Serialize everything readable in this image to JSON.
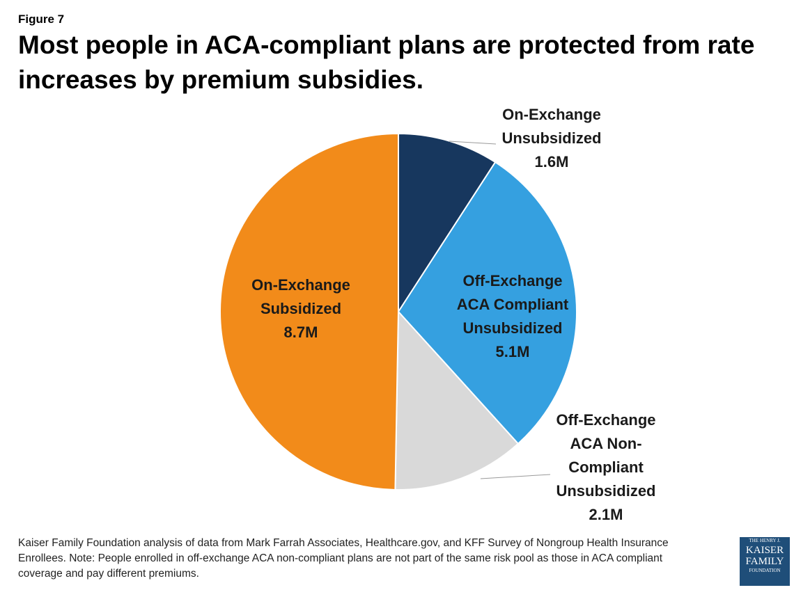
{
  "figure_label": "Figure 7",
  "chart_data": {
    "type": "pie",
    "title": "Most people in ACA-compliant plans are protected from rate increases by premium subsidies.",
    "categories": [
      "On-Exchange Unsubsidized",
      "Off-Exchange ACA Compliant Unsubsidized",
      "Off-Exchange ACA Non-Compliant Unsubsidized",
      "On-Exchange Subsidized"
    ],
    "values": [
      1.6,
      5.1,
      2.1,
      8.7
    ],
    "value_labels": [
      "1.6M",
      "5.1M",
      "2.1M",
      "8.7M"
    ],
    "colors": [
      "#17375e",
      "#35a0e0",
      "#d9d9d9",
      "#f28b1a"
    ]
  },
  "source": "Kaiser Family Foundation analysis of data from Mark Farrah Associates, Healthcare.gov, and KFF Survey of Nongroup Health Insurance Enrollees. Note: People enrolled in off-exchange ACA non-compliant plans are not part of the same risk pool as those in ACA compliant coverage and pay different premiums.",
  "logo": [
    "THE HENRY J.",
    "KAISER",
    "FAMILY",
    "FOUNDATION"
  ]
}
